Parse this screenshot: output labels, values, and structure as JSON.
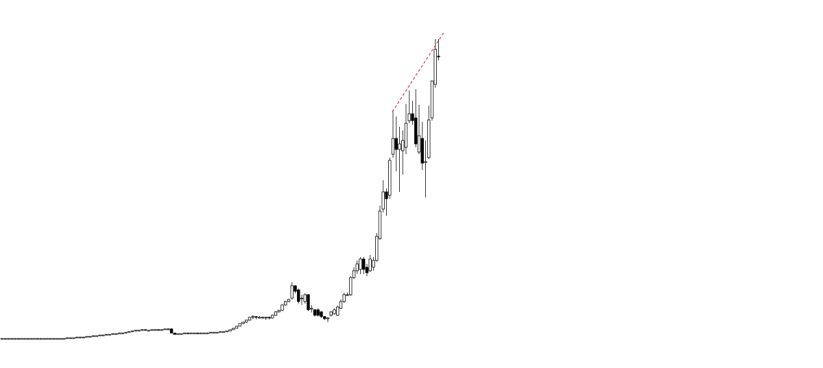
{
  "chart_data": {
    "type": "candlestick",
    "title": "",
    "xlabel": "",
    "ylabel": "",
    "axes_visible": false,
    "grid": false,
    "ylim": [
      0,
      500
    ],
    "colors": {
      "up_body": "#ffffff",
      "down_body": "#000000",
      "outline": "#000000",
      "wick": "#333333",
      "trendline": "#e0303a"
    },
    "candles_ohlc": [
      [
        6,
        6.5,
        5.5,
        6
      ],
      [
        6,
        6.5,
        5.5,
        6
      ],
      [
        6,
        6.5,
        5.5,
        6
      ],
      [
        6,
        6.5,
        5.5,
        6
      ],
      [
        6,
        6.5,
        5.5,
        6
      ],
      [
        6,
        6.5,
        5.5,
        6
      ],
      [
        6,
        6.5,
        5.5,
        6
      ],
      [
        6,
        6.5,
        5.5,
        6
      ],
      [
        6,
        6.5,
        5.5,
        6
      ],
      [
        6,
        6.5,
        5.5,
        6
      ],
      [
        6,
        6.5,
        5.5,
        6
      ],
      [
        6,
        6.5,
        5.5,
        6
      ],
      [
        6,
        6.5,
        5.5,
        6
      ],
      [
        6,
        6.5,
        5.5,
        6
      ],
      [
        6,
        6.5,
        5.5,
        6
      ],
      [
        6,
        6.5,
        5.5,
        6
      ],
      [
        6,
        6.5,
        5.5,
        6
      ],
      [
        6,
        6.5,
        5.5,
        6
      ],
      [
        6,
        6.5,
        5.5,
        6
      ],
      [
        6,
        6.5,
        5.5,
        6
      ],
      [
        6,
        7.5,
        6,
        7
      ],
      [
        7,
        7.5,
        6.5,
        7
      ],
      [
        7,
        7.5,
        6.5,
        7
      ],
      [
        7,
        8.5,
        7,
        8
      ],
      [
        8,
        8.5,
        7.5,
        8
      ],
      [
        8,
        8.5,
        7.5,
        8
      ],
      [
        8,
        9.5,
        8,
        9
      ],
      [
        9,
        9.5,
        8.5,
        9
      ],
      [
        9,
        10.5,
        9,
        10
      ],
      [
        10,
        10.5,
        9.5,
        10
      ],
      [
        10,
        11.5,
        10,
        11
      ],
      [
        11,
        11.5,
        10.5,
        11
      ],
      [
        11,
        12.5,
        11,
        12
      ],
      [
        12,
        12.5,
        11.5,
        12
      ],
      [
        12,
        13.5,
        12,
        13
      ],
      [
        13,
        13.5,
        12.5,
        13
      ],
      [
        13,
        14.5,
        13,
        14
      ],
      [
        14,
        14.5,
        13.5,
        14
      ],
      [
        14,
        15.5,
        14,
        15
      ],
      [
        15,
        16.5,
        15,
        16
      ],
      [
        16,
        17.5,
        16,
        17
      ],
      [
        17,
        18.5,
        17,
        18
      ],
      [
        18,
        18.5,
        17.5,
        18
      ],
      [
        18,
        19.5,
        18,
        19
      ],
      [
        19,
        19.5,
        17.5,
        18
      ],
      [
        18,
        18.5,
        17.5,
        18
      ],
      [
        18,
        19.5,
        18,
        19
      ],
      [
        19,
        19.5,
        18.5,
        19
      ],
      [
        19,
        19.5,
        17.5,
        18
      ],
      [
        18,
        19.5,
        18,
        19
      ],
      [
        19,
        20.5,
        19,
        20
      ],
      [
        20,
        21,
        19.5,
        20
      ],
      [
        20,
        21,
        13.5,
        14
      ],
      [
        14,
        14.5,
        11.5,
        12
      ],
      [
        12,
        13.5,
        12,
        13
      ],
      [
        13,
        13.5,
        12.5,
        13
      ],
      [
        13,
        14.5,
        13,
        14
      ],
      [
        14,
        14.5,
        12.5,
        13
      ],
      [
        13,
        14.5,
        13,
        14
      ],
      [
        14,
        14.5,
        13.5,
        14
      ],
      [
        14,
        14.5,
        12.5,
        13
      ],
      [
        13,
        14.5,
        13,
        14
      ],
      [
        14,
        14.5,
        13.5,
        14
      ],
      [
        14,
        14.5,
        13.5,
        14
      ],
      [
        14,
        15.5,
        14,
        15
      ],
      [
        15,
        15.5,
        14.5,
        15
      ],
      [
        15,
        15.5,
        14.5,
        15
      ],
      [
        15,
        16.5,
        15,
        16
      ],
      [
        16,
        16.5,
        15.5,
        16
      ],
      [
        16,
        17.5,
        16,
        17
      ],
      [
        17,
        19.5,
        17,
        19
      ],
      [
        19,
        21.5,
        19,
        21
      ],
      [
        21,
        24.5,
        21,
        24
      ],
      [
        24,
        28.5,
        24,
        28
      ],
      [
        28,
        30.5,
        27,
        30
      ],
      [
        30,
        33.5,
        29,
        33
      ],
      [
        33,
        37.5,
        32,
        37
      ],
      [
        37,
        40,
        34,
        38
      ],
      [
        38,
        39,
        34,
        37
      ],
      [
        37,
        39,
        35,
        37
      ],
      [
        37,
        38,
        35,
        37
      ],
      [
        37,
        38,
        33,
        37
      ],
      [
        37,
        38,
        34,
        36
      ],
      [
        36,
        41,
        35,
        40
      ],
      [
        40,
        46,
        39,
        45
      ],
      [
        45,
        48,
        44,
        47
      ],
      [
        47,
        56,
        46,
        55
      ],
      [
        55,
        61,
        54,
        60
      ],
      [
        60,
        64,
        59,
        63
      ],
      [
        65,
        88,
        63,
        83
      ],
      [
        83,
        84,
        72,
        75
      ],
      [
        77,
        79,
        57,
        60
      ],
      [
        65,
        70,
        55,
        65
      ],
      [
        60,
        72,
        57,
        70
      ],
      [
        70,
        71,
        46,
        48
      ],
      [
        50,
        55,
        44,
        50
      ],
      [
        48,
        49,
        38,
        40
      ],
      [
        48,
        50,
        38,
        40
      ],
      [
        45,
        46,
        36,
        38
      ],
      [
        38,
        39,
        33,
        35
      ],
      [
        35,
        37,
        30,
        36
      ],
      [
        40,
        46,
        38,
        45
      ],
      [
        42,
        50,
        41,
        48
      ],
      [
        40,
        54,
        39,
        52
      ],
      [
        50,
        63,
        49,
        60
      ],
      [
        60,
        73,
        58,
        70
      ],
      [
        70,
        73,
        68,
        70
      ],
      [
        70,
        97,
        68,
        95
      ],
      [
        95,
        110,
        93,
        105
      ],
      [
        105,
        120,
        100,
        115
      ],
      [
        107,
        125,
        100,
        122
      ],
      [
        122,
        125,
        100,
        107
      ],
      [
        110,
        115,
        97,
        102
      ],
      [
        105,
        128,
        103,
        122
      ],
      [
        110,
        125,
        105,
        120
      ],
      [
        120,
        160,
        118,
        155
      ],
      [
        152,
        200,
        150,
        192
      ],
      [
        195,
        237,
        190,
        220
      ],
      [
        220,
        225,
        185,
        210
      ],
      [
        215,
        270,
        210,
        266
      ],
      [
        275,
        340,
        270,
        298
      ],
      [
        298,
        330,
        250,
        282
      ],
      [
        282,
        315,
        220,
        290
      ],
      [
        280,
        310,
        245,
        295
      ],
      [
        285,
        348,
        275,
        320
      ],
      [
        324,
        368,
        320,
        334
      ],
      [
        334,
        353,
        318,
        324
      ],
      [
        328,
        370,
        285,
        290
      ],
      [
        278,
        347,
        275,
        302
      ],
      [
        298,
        322,
        252,
        262
      ],
      [
        264,
        295,
        212,
        264
      ],
      [
        270,
        346,
        268,
        325
      ],
      [
        328,
        382,
        324,
        382
      ],
      [
        377,
        443,
        372,
        428
      ],
      [
        418,
        443,
        412,
        417
      ]
    ],
    "annotations": [
      {
        "type": "dashed-trendline",
        "from": {
          "index": 119.8,
          "price": 337
        },
        "to": {
          "index": 135.8,
          "price": 454
        }
      }
    ]
  }
}
